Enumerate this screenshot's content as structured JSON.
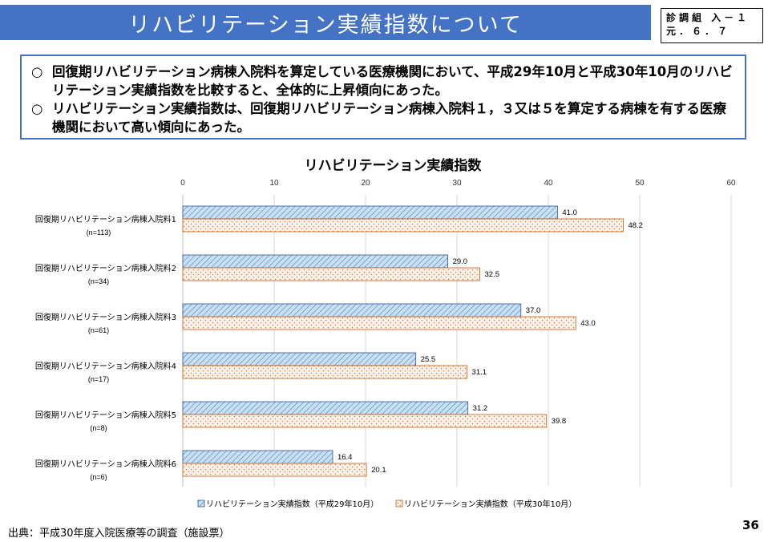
{
  "header": {
    "title": "リハビリテーション実績指数について",
    "ref_line1": "診調組 入－１",
    "ref_line2": "元．６．７"
  },
  "summary": {
    "bullet": "○",
    "items": [
      "回復期リハビリテーション病棟入院料を算定している医療機関において、平成29年10月と平成30年10月のリハビリテーション実績指数を比較すると、全体的に上昇傾向にあった。",
      "リハビリテーション実績指数は、回復期リハビリテーション病棟入院料１，３又は５を算定する病棟を有する医療機関において高い傾向にあった。"
    ]
  },
  "chart_data": {
    "type": "bar",
    "orientation": "horizontal",
    "title": "リハビリテーション実績指数",
    "categories": [
      "回復期リハビリテーション病棟入院料1",
      "回復期リハビリテーション病棟入院料2",
      "回復期リハビリテーション病棟入院料3",
      "回復期リハビリテーション病棟入院料4",
      "回復期リハビリテーション病棟入院料5",
      "回復期リハビリテーション病棟入院料6"
    ],
    "category_n": [
      "(n=113)",
      "(n=34)",
      "(n=61)",
      "(n=17)",
      "(n=8)",
      "(n=6)"
    ],
    "series": [
      {
        "name": "リハビリテーション実績指数（平成29年10月）",
        "values": [
          41.0,
          29.0,
          37.0,
          25.5,
          31.2,
          16.4
        ],
        "color": "#9dc3e6",
        "pattern": "diagonal-hatch"
      },
      {
        "name": "リハビリテーション実績指数（平成30年10月）",
        "values": [
          48.2,
          32.5,
          43.0,
          31.1,
          39.8,
          20.1
        ],
        "color": "#f4b183",
        "pattern": "dots"
      }
    ],
    "xlim": [
      0,
      60
    ],
    "xticks": [
      0,
      10,
      20,
      30,
      40,
      50,
      60
    ],
    "grid": true,
    "legend": "bottom"
  },
  "footer": {
    "source": "出典：平成30年度入院医療等の調査（施設票）",
    "page": "36"
  }
}
